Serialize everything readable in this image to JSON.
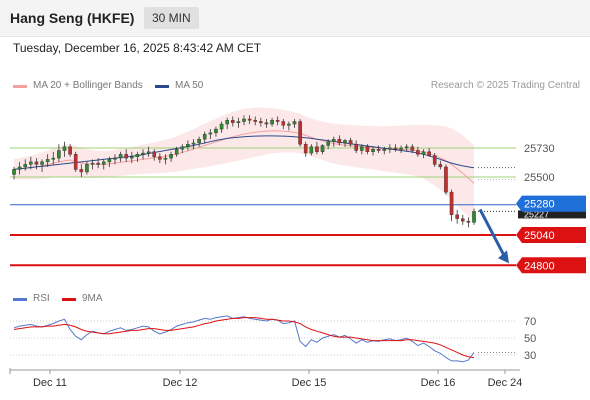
{
  "header": {
    "title": "Hang Seng (HKFE)",
    "timeframe": "30 MIN",
    "datetime": "Tuesday, December 16, 2025 8:43:42 AM CET"
  },
  "legend": {
    "bb_label": "MA 20 + Bollinger Bands",
    "ma50_label": "MA 50",
    "rsi_label": "RSI",
    "rsi_ma_label": "9MA",
    "credit": "Research © 2025 Trading Central"
  },
  "colors": {
    "bb": "#f4a0a0",
    "ma50": "#2b4a8c",
    "rsi": "#5577cc",
    "rsi_ma": "#dd1111",
    "support": "#dd1111",
    "pivot_line": "#3366cc",
    "resistance_line": "#9fd07a",
    "arrow": "#2b5ea8"
  },
  "chart_data": [
    {
      "type": "candlestick",
      "name": "price",
      "x_ticks": [
        "Dec 11",
        "Dec 12",
        "Dec 15",
        "Dec 16",
        "Dec 24"
      ],
      "ylim": [
        24700,
        26050
      ],
      "horizontal_levels": [
        {
          "value": 25730,
          "label": "25730",
          "kind": "resistance"
        },
        {
          "value": 25500,
          "label": "25500",
          "kind": "resistance"
        },
        {
          "value": 25280,
          "label": "25280",
          "kind": "pivot"
        },
        {
          "value": 25040,
          "label": "25040",
          "kind": "support"
        },
        {
          "value": 24800,
          "label": "24800",
          "kind": "support"
        }
      ],
      "last_price": {
        "value": 25227,
        "label": "25227"
      },
      "forecast_arrow": {
        "from": 25227,
        "to": 24800
      },
      "ohlc": [
        [
          25520,
          25580,
          25480,
          25560
        ],
        [
          25560,
          25620,
          25520,
          25580
        ],
        [
          25580,
          25640,
          25550,
          25600
        ],
        [
          25600,
          25660,
          25560,
          25620
        ],
        [
          25620,
          25650,
          25560,
          25600
        ],
        [
          25600,
          25640,
          25540,
          25620
        ],
        [
          25620,
          25680,
          25580,
          25640
        ],
        [
          25640,
          25700,
          25600,
          25650
        ],
        [
          25650,
          25760,
          25620,
          25710
        ],
        [
          25710,
          25780,
          25660,
          25740
        ],
        [
          25740,
          25760,
          25660,
          25680
        ],
        [
          25680,
          25700,
          25540,
          25560
        ],
        [
          25560,
          25600,
          25500,
          25540
        ],
        [
          25540,
          25620,
          25520,
          25600
        ],
        [
          25600,
          25640,
          25560,
          25610
        ],
        [
          25610,
          25650,
          25570,
          25600
        ],
        [
          25600,
          25640,
          25560,
          25620
        ],
        [
          25620,
          25660,
          25580,
          25640
        ],
        [
          25640,
          25680,
          25600,
          25650
        ],
        [
          25650,
          25700,
          25620,
          25680
        ],
        [
          25680,
          25720,
          25620,
          25650
        ],
        [
          25650,
          25700,
          25610,
          25660
        ],
        [
          25660,
          25700,
          25620,
          25680
        ],
        [
          25680,
          25720,
          25640,
          25690
        ],
        [
          25690,
          25740,
          25660,
          25700
        ],
        [
          25700,
          25720,
          25630,
          25660
        ],
        [
          25660,
          25690,
          25610,
          25640
        ],
        [
          25640,
          25680,
          25600,
          25650
        ],
        [
          25650,
          25700,
          25620,
          25680
        ],
        [
          25680,
          25740,
          25660,
          25720
        ],
        [
          25720,
          25760,
          25690,
          25740
        ],
        [
          25740,
          25790,
          25710,
          25760
        ],
        [
          25760,
          25800,
          25720,
          25770
        ],
        [
          25770,
          25820,
          25740,
          25800
        ],
        [
          25800,
          25860,
          25770,
          25840
        ],
        [
          25840,
          25880,
          25800,
          25850
        ],
        [
          25850,
          25900,
          25820,
          25880
        ],
        [
          25880,
          25940,
          25850,
          25920
        ],
        [
          25920,
          25970,
          25880,
          25950
        ],
        [
          25950,
          25980,
          25900,
          25930
        ],
        [
          25930,
          25970,
          25890,
          25940
        ],
        [
          25940,
          25990,
          25910,
          25960
        ],
        [
          25960,
          25990,
          25920,
          25950
        ],
        [
          25950,
          25980,
          25910,
          25940
        ],
        [
          25940,
          25970,
          25900,
          25930
        ],
        [
          25930,
          25960,
          25890,
          25920
        ],
        [
          25920,
          25970,
          25900,
          25950
        ],
        [
          25950,
          25980,
          25910,
          25940
        ],
        [
          25940,
          25960,
          25880,
          25910
        ],
        [
          25910,
          25940,
          25870,
          25920
        ],
        [
          25920,
          25960,
          25890,
          25940
        ],
        [
          25940,
          25960,
          25740,
          25760
        ],
        [
          25760,
          25780,
          25660,
          25690
        ],
        [
          25690,
          25760,
          25670,
          25740
        ],
        [
          25740,
          25780,
          25680,
          25700
        ],
        [
          25700,
          25760,
          25680,
          25750
        ],
        [
          25750,
          25800,
          25720,
          25780
        ],
        [
          25780,
          25820,
          25740,
          25800
        ],
        [
          25800,
          25830,
          25750,
          25770
        ],
        [
          25770,
          25800,
          25740,
          25790
        ],
        [
          25790,
          25810,
          25740,
          25760
        ],
        [
          25760,
          25790,
          25690,
          25710
        ],
        [
          25710,
          25760,
          25680,
          25740
        ],
        [
          25740,
          25760,
          25680,
          25700
        ],
        [
          25700,
          25740,
          25670,
          25720
        ],
        [
          25720,
          25750,
          25690,
          25710
        ],
        [
          25710,
          25740,
          25680,
          25720
        ],
        [
          25720,
          25760,
          25690,
          25730
        ],
        [
          25730,
          25760,
          25700,
          25720
        ],
        [
          25720,
          25750,
          25690,
          25730
        ],
        [
          25730,
          25760,
          25700,
          25740
        ],
        [
          25740,
          25760,
          25690,
          25710
        ],
        [
          25710,
          25740,
          25660,
          25680
        ],
        [
          25680,
          25720,
          25650,
          25700
        ],
        [
          25700,
          25730,
          25660,
          25670
        ],
        [
          25670,
          25690,
          25580,
          25600
        ],
        [
          25600,
          25630,
          25560,
          25580
        ],
        [
          25580,
          25600,
          25360,
          25380
        ],
        [
          25380,
          25400,
          25150,
          25200
        ],
        [
          25200,
          25240,
          25130,
          25170
        ],
        [
          25170,
          25200,
          25120,
          25150
        ],
        [
          25150,
          25180,
          25100,
          25140
        ],
        [
          25140,
          25250,
          25120,
          25227
        ]
      ],
      "ma50": [
        25560,
        25565,
        25570,
        25575,
        25580,
        25585,
        25590,
        25595,
        25600,
        25605,
        25610,
        25615,
        25620,
        25625,
        25630,
        25635,
        25640,
        25645,
        25650,
        25655,
        25660,
        25665,
        25670,
        25678,
        25686,
        25694,
        25702,
        25710,
        25718,
        25726,
        25734,
        25742,
        25750,
        25760,
        25770,
        25780,
        25790,
        25798,
        25806,
        25812,
        25816,
        25820,
        25822,
        25824,
        25825,
        25826,
        25826,
        25825,
        25824,
        25822,
        25820,
        25816,
        25812,
        25806,
        25800,
        25794,
        25788,
        25782,
        25776,
        25770,
        25764,
        25758,
        25752,
        25746,
        25740,
        25734,
        25728,
        25722,
        25716,
        25710,
        25704,
        25698,
        25690,
        25680,
        25668,
        25654,
        25640,
        25624,
        25610,
        25598,
        25588,
        25580,
        25574
      ],
      "ma20": [
        25560,
        25565,
        25570,
        25575,
        25580,
        25590,
        25600,
        25610,
        25620,
        25628,
        25635,
        25620,
        25610,
        25605,
        25602,
        25600,
        25600,
        25605,
        25610,
        25616,
        25622,
        25628,
        25634,
        25640,
        25646,
        25652,
        25658,
        25664,
        25672,
        25682,
        25694,
        25708,
        25722,
        25736,
        25750,
        25764,
        25778,
        25792,
        25806,
        25818,
        25830,
        25840,
        25848,
        25855,
        25860,
        25864,
        25866,
        25866,
        25864,
        25860,
        25855,
        25845,
        25830,
        25815,
        25800,
        25787,
        25775,
        25765,
        25758,
        25752,
        25748,
        25744,
        25740,
        25736,
        25732,
        25728,
        25724,
        25722,
        25720,
        25718,
        25716,
        25714,
        25710,
        25700,
        25686,
        25670,
        25652,
        25630,
        25600,
        25566,
        25530,
        25490,
        25450
      ],
      "bb_width": [
        80,
        85,
        90,
        95,
        100,
        105,
        110,
        115,
        120,
        125,
        130,
        125,
        120,
        115,
        110,
        108,
        106,
        105,
        105,
        106,
        108,
        110,
        112,
        115,
        118,
        122,
        126,
        130,
        135,
        140,
        146,
        152,
        158,
        165,
        172,
        178,
        184,
        190,
        195,
        198,
        200,
        200,
        198,
        195,
        190,
        185,
        180,
        175,
        170,
        165,
        160,
        156,
        152,
        150,
        150,
        152,
        155,
        158,
        160,
        162,
        164,
        166,
        168,
        170,
        172,
        175,
        178,
        182,
        186,
        190,
        195,
        200,
        205,
        215,
        225,
        240,
        255,
        270,
        285,
        295,
        300,
        302,
        300
      ]
    },
    {
      "type": "line",
      "name": "rsi",
      "yticks": [
        "70",
        "50",
        "30"
      ],
      "ylim": [
        10,
        85
      ],
      "rsi": [
        62,
        64,
        65,
        66,
        64,
        63,
        65,
        67,
        70,
        72,
        60,
        52,
        48,
        54,
        58,
        56,
        55,
        58,
        60,
        62,
        59,
        60,
        62,
        64,
        63,
        58,
        55,
        57,
        60,
        64,
        66,
        68,
        69,
        71,
        73,
        72,
        74,
        75,
        76,
        73,
        74,
        75,
        73,
        72,
        71,
        70,
        72,
        71,
        67,
        68,
        70,
        46,
        40,
        48,
        45,
        50,
        52,
        54,
        51,
        53,
        49,
        44,
        48,
        45,
        47,
        46,
        48,
        49,
        47,
        48,
        50,
        46,
        41,
        44,
        40,
        35,
        32,
        27,
        23,
        23,
        22,
        24,
        33
      ],
      "rsi_ma": [
        60,
        61,
        62,
        63,
        63,
        63,
        64,
        64,
        65,
        66,
        65,
        63,
        60,
        58,
        57,
        56,
        55,
        55,
        56,
        57,
        58,
        59,
        59,
        60,
        61,
        61,
        60,
        59,
        59,
        60,
        61,
        62,
        63,
        65,
        67,
        68,
        70,
        71,
        72,
        73,
        73,
        74,
        74,
        74,
        73,
        72,
        72,
        71,
        70,
        70,
        69,
        67,
        63,
        60,
        58,
        56,
        54,
        52,
        51,
        51,
        51,
        50,
        49,
        48,
        47,
        47,
        47,
        47,
        47,
        47,
        48,
        48,
        47,
        46,
        45,
        44,
        42,
        39,
        36,
        33,
        30,
        28,
        27
      ]
    }
  ]
}
